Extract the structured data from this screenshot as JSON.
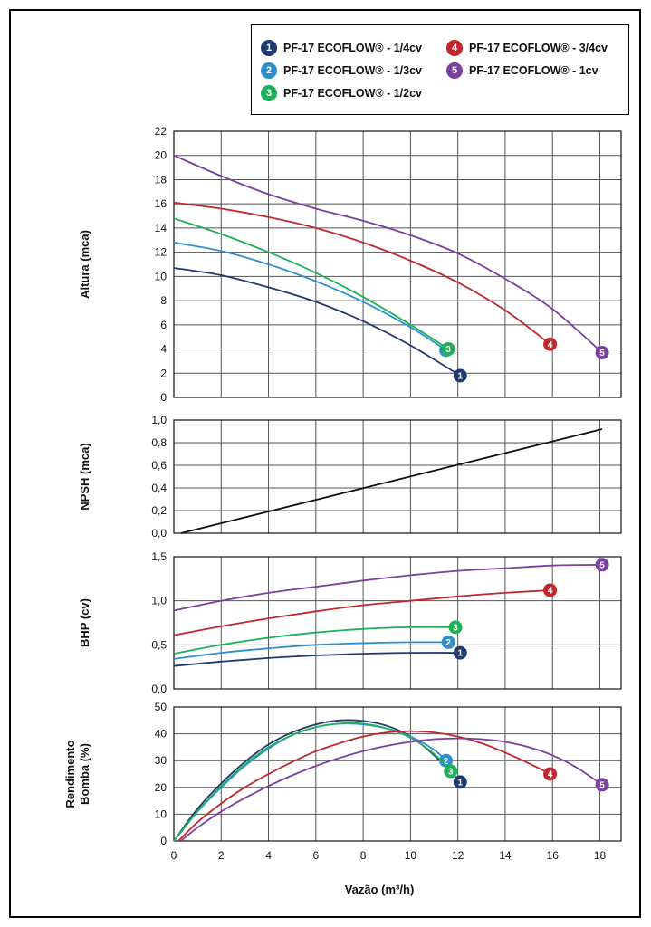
{
  "legend": [
    {
      "num": "1",
      "label": "PF-17 ECOFLOW® - 1/4cv",
      "color": "#1f3a6e"
    },
    {
      "num": "2",
      "label": "PF-17 ECOFLOW® - 1/3cv",
      "color": "#2e8fd0"
    },
    {
      "num": "3",
      "label": "PF-17 ECOFLOW® - 1/2cv",
      "color": "#1fb15a"
    },
    {
      "num": "4",
      "label": "PF-17 ECOFLOW® - 3/4cv",
      "color": "#c0282d"
    },
    {
      "num": "5",
      "label": "PF-17 ECOFLOW® - 1cv",
      "color": "#7b3fa0"
    }
  ],
  "chart_data": [
    {
      "type": "line",
      "ylabel": "Altura (mca)",
      "ylim": [
        0,
        22
      ],
      "yticks": [
        "0",
        "2",
        "4",
        "6",
        "8",
        "10",
        "12",
        "14",
        "16",
        "18",
        "20",
        "22"
      ],
      "xlim": [
        0,
        18.9
      ],
      "grid": true,
      "series": [
        {
          "name": "PF-17 ECOFLOW® - 1/4cv",
          "marker": "1",
          "color": "#1f3a6e",
          "x": [
            0,
            2,
            4,
            6,
            8,
            10,
            12.1
          ],
          "y": [
            10.7,
            10.1,
            9.1,
            7.9,
            6.3,
            4.3,
            1.8
          ]
        },
        {
          "name": "PF-17 ECOFLOW® - 1/3cv",
          "marker": "2",
          "color": "#2e8fd0",
          "x": [
            0,
            2,
            4,
            6,
            8,
            10,
            11.5
          ],
          "y": [
            12.8,
            12.1,
            11.0,
            9.6,
            7.9,
            5.8,
            3.9
          ]
        },
        {
          "name": "PF-17 ECOFLOW® - 1/2cv",
          "marker": "3",
          "color": "#1fb15a",
          "x": [
            0,
            2,
            4,
            6,
            8,
            10,
            11.6
          ],
          "y": [
            14.8,
            13.5,
            12.0,
            10.3,
            8.3,
            6.0,
            4.0
          ]
        },
        {
          "name": "PF-17 ECOFLOW® - 3/4cv",
          "marker": "4",
          "color": "#c0282d",
          "x": [
            0,
            2,
            4,
            6,
            8,
            10,
            12,
            14,
            15.9
          ],
          "y": [
            16.1,
            15.6,
            14.9,
            14.0,
            12.8,
            11.3,
            9.5,
            7.2,
            4.4
          ]
        },
        {
          "name": "PF-17 ECOFLOW® - 1cv",
          "marker": "5",
          "color": "#7b3fa0",
          "x": [
            0,
            2,
            4,
            6,
            8,
            10,
            12,
            14,
            16,
            18.1
          ],
          "y": [
            20.0,
            18.3,
            16.8,
            15.6,
            14.6,
            13.4,
            11.9,
            9.8,
            7.3,
            3.7
          ]
        }
      ]
    },
    {
      "type": "line",
      "ylabel": "NPSH (mca)",
      "ylim": [
        0,
        1.0
      ],
      "yticks": [
        "0,0",
        "0,2",
        "0,4",
        "0,6",
        "0,8",
        "1,0"
      ],
      "xlim": [
        0,
        18.9
      ],
      "grid": true,
      "series": [
        {
          "color": "#111111",
          "x": [
            0.3,
            18.1
          ],
          "y": [
            0.0,
            0.92
          ]
        }
      ]
    },
    {
      "type": "line",
      "ylabel": "BHP (cv)",
      "ylim": [
        0,
        1.5
      ],
      "yticks": [
        "0,0",
        "0,5",
        "1,0",
        "1,5"
      ],
      "xlim": [
        0,
        18.9
      ],
      "grid": true,
      "series": [
        {
          "name": "PF-17 ECOFLOW® - 1/4cv",
          "marker": "1",
          "color": "#1f3a6e",
          "x": [
            0,
            2,
            4,
            6,
            8,
            10,
            12.1
          ],
          "y": [
            0.26,
            0.31,
            0.35,
            0.38,
            0.4,
            0.41,
            0.41
          ]
        },
        {
          "name": "PF-17 ECOFLOW® - 1/3cv",
          "marker": "2",
          "color": "#2e8fd0",
          "x": [
            0,
            2,
            4,
            6,
            8,
            10,
            11.6
          ],
          "y": [
            0.34,
            0.41,
            0.46,
            0.5,
            0.52,
            0.53,
            0.53
          ]
        },
        {
          "name": "PF-17 ECOFLOW® - 1/2cv",
          "marker": "3",
          "color": "#1fb15a",
          "x": [
            0,
            2,
            4,
            6,
            8,
            10,
            11.9
          ],
          "y": [
            0.4,
            0.5,
            0.58,
            0.64,
            0.68,
            0.7,
            0.7
          ]
        },
        {
          "name": "PF-17 ECOFLOW® - 3/4cv",
          "marker": "4",
          "color": "#c0282d",
          "x": [
            0,
            2,
            4,
            6,
            8,
            10,
            12,
            14,
            15.9
          ],
          "y": [
            0.61,
            0.71,
            0.8,
            0.88,
            0.95,
            1.0,
            1.05,
            1.09,
            1.12
          ]
        },
        {
          "name": "PF-17 ECOFLOW® - 1cv",
          "marker": "5",
          "color": "#7b3fa0",
          "x": [
            0,
            2,
            4,
            6,
            8,
            10,
            12,
            14,
            16,
            18.1
          ],
          "y": [
            0.89,
            1.0,
            1.09,
            1.16,
            1.23,
            1.29,
            1.34,
            1.37,
            1.4,
            1.41
          ]
        }
      ]
    },
    {
      "type": "line",
      "ylabel": "Rendimento Bomba (%)",
      "ylabel_lines": [
        "Rendimento",
        "Bomba (%)"
      ],
      "ylim": [
        0,
        50
      ],
      "yticks": [
        "0",
        "10",
        "20",
        "30",
        "40",
        "50"
      ],
      "xlim": [
        0,
        18.9
      ],
      "xticks": [
        "0",
        "2",
        "4",
        "6",
        "8",
        "10",
        "12",
        "14",
        "16",
        "18"
      ],
      "xlabel": "Vazão (m³/h)",
      "grid": true,
      "series": [
        {
          "name": "PF-17 ECOFLOW® - 1/4cv",
          "marker": "1",
          "color": "#1f3a6e",
          "x": [
            0,
            1,
            2,
            3,
            4,
            5,
            6,
            7,
            8,
            9,
            10,
            11,
            12.1
          ],
          "y": [
            0,
            12,
            21.5,
            29.5,
            36,
            40.5,
            43.5,
            45,
            44.8,
            43,
            39,
            32,
            22
          ]
        },
        {
          "name": "PF-17 ECOFLOW® - 1/3cv",
          "marker": "2",
          "color": "#2e8fd0",
          "x": [
            0,
            1,
            2,
            3,
            4,
            5,
            6,
            7,
            8,
            9,
            10,
            11,
            11.5
          ],
          "y": [
            0,
            11,
            20,
            28,
            34.5,
            39.5,
            42.5,
            43.8,
            43.5,
            42,
            39,
            34,
            30
          ]
        },
        {
          "name": "PF-17 ECOFLOW® - 1/2cv",
          "marker": "3",
          "color": "#1fb15a",
          "x": [
            0,
            1,
            2,
            3,
            4,
            5,
            6,
            7,
            8,
            9,
            10,
            11,
            11.7
          ],
          "y": [
            0,
            11,
            20.5,
            28.5,
            35,
            39.5,
            42.5,
            43.8,
            43.8,
            42,
            38.5,
            32.5,
            26
          ]
        },
        {
          "name": "PF-17 ECOFLOW® - 3/4cv",
          "marker": "4",
          "color": "#c0282d",
          "x": [
            0.2,
            1,
            2,
            3,
            4,
            5,
            6,
            7,
            8,
            9,
            10,
            11,
            12,
            13,
            14,
            15,
            15.9
          ],
          "y": [
            0,
            7,
            14,
            20,
            25,
            29.5,
            33.5,
            36.5,
            39,
            40.5,
            41,
            40.5,
            39,
            36.5,
            33,
            29,
            25
          ]
        },
        {
          "name": "PF-17 ECOFLOW® - 1cv",
          "marker": "5",
          "color": "#7b3fa0",
          "x": [
            0.3,
            1,
            2,
            3,
            4,
            5,
            6,
            7,
            8,
            9,
            10,
            11,
            12,
            13,
            14,
            15,
            16,
            17,
            18.1
          ],
          "y": [
            0,
            5,
            11,
            16,
            20.5,
            24.5,
            28,
            31,
            33.5,
            35.5,
            37,
            38,
            38.3,
            38,
            37,
            35,
            32,
            27.5,
            21
          ]
        }
      ]
    }
  ]
}
